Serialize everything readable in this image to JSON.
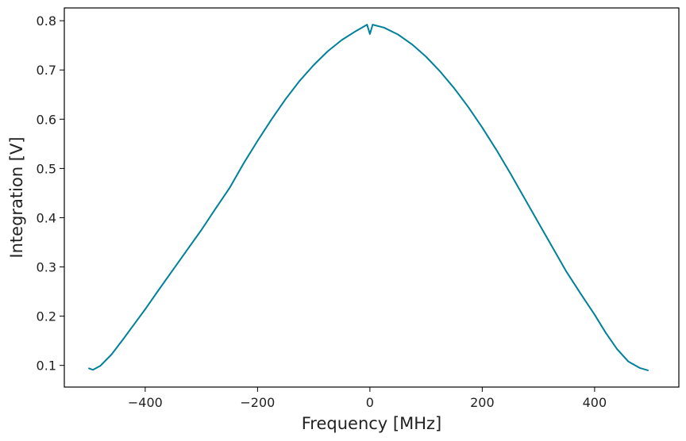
{
  "chart_data": {
    "type": "line",
    "title": "",
    "xlabel": "Frequency [MHz]",
    "ylabel": "Integration [V]",
    "xlim": [
      -544,
      550
    ],
    "ylim": [
      0.056,
      0.826
    ],
    "grid": false,
    "legend": null,
    "x_ticks": [
      -400,
      -200,
      0,
      200,
      400
    ],
    "x_tick_labels": [
      "−400",
      "−200",
      "0",
      "200",
      "400"
    ],
    "y_ticks": [
      0.1,
      0.2,
      0.3,
      0.4,
      0.5,
      0.6,
      0.7,
      0.8
    ],
    "y_tick_labels": [
      "0.1",
      "0.2",
      "0.3",
      "0.4",
      "0.5",
      "0.6",
      "0.7",
      "0.8"
    ],
    "series": [
      {
        "name": "Integration",
        "color": "#00819a",
        "x": [
          -500,
          -493,
          -480,
          -460,
          -440,
          -420,
          -400,
          -375,
          -350,
          -325,
          -300,
          -275,
          -250,
          -225,
          -200,
          -175,
          -150,
          -125,
          -100,
          -75,
          -50,
          -25,
          -5,
          0,
          5,
          25,
          50,
          75,
          100,
          125,
          150,
          175,
          200,
          225,
          250,
          275,
          300,
          325,
          350,
          375,
          400,
          420,
          440,
          460,
          480,
          495
        ],
        "values": [
          0.094,
          0.091,
          0.099,
          0.122,
          0.152,
          0.183,
          0.214,
          0.255,
          0.295,
          0.335,
          0.375,
          0.418,
          0.46,
          0.51,
          0.556,
          0.6,
          0.641,
          0.678,
          0.71,
          0.738,
          0.761,
          0.779,
          0.792,
          0.773,
          0.792,
          0.786,
          0.772,
          0.752,
          0.727,
          0.697,
          0.663,
          0.625,
          0.583,
          0.538,
          0.49,
          0.44,
          0.39,
          0.34,
          0.29,
          0.246,
          0.203,
          0.166,
          0.133,
          0.108,
          0.095,
          0.09
        ]
      }
    ]
  }
}
